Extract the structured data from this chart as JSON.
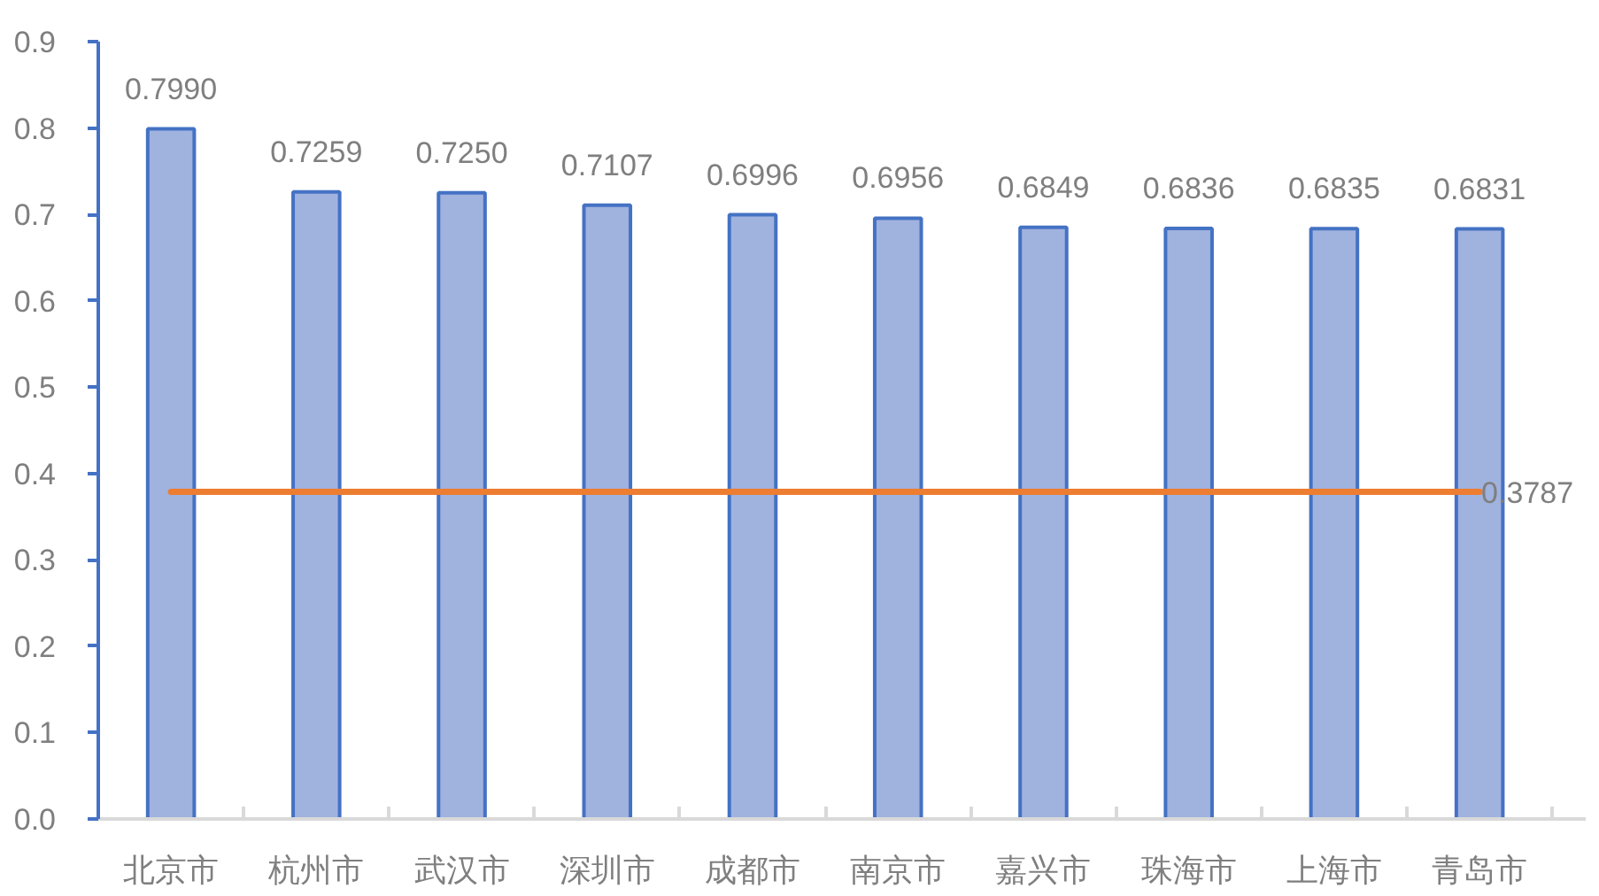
{
  "chart_data": {
    "type": "bar",
    "categories": [
      "北京市",
      "杭州市",
      "武汉市",
      "深圳市",
      "成都市",
      "南京市",
      "嘉兴市",
      "珠海市",
      "上海市",
      "青岛市"
    ],
    "series": [
      {
        "color": "#a0b2de",
        "values": [
          0.799,
          0.7259,
          0.725,
          0.7107,
          0.6996,
          0.6956,
          0.6849,
          0.6836,
          0.6835,
          0.6831
        ],
        "value_labels": [
          "0.7990",
          "0.7259",
          "0.7250",
          "0.7107",
          "0.6996",
          "0.6956",
          "0.6849",
          "0.6836",
          "0.6835",
          "0.6831"
        ]
      }
    ],
    "ref_lines": [
      {
        "axis": "y",
        "value": 0.3787,
        "label": "0.3787",
        "color": "#ed7d31"
      }
    ],
    "ylim": [
      0,
      0.9
    ],
    "yticks": [
      {
        "value": 0,
        "label": "0.0"
      },
      0.1,
      0.2,
      0.3,
      0.4,
      0.5,
      0.6,
      0.7,
      0.8,
      0.9
    ],
    "grid": false
  }
}
